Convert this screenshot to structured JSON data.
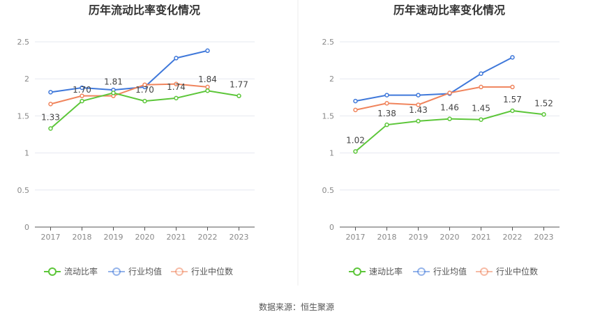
{
  "source": "数据来源：恒生聚源",
  "colors": {
    "main": "#5cc639",
    "avg": "#3f78da",
    "median": "#f0845c",
    "grid": "#e6e8f0",
    "axis": "#555555"
  },
  "chart_data": [
    {
      "type": "line",
      "title": "历年流动比率变化情况",
      "categories": [
        "2017",
        "2018",
        "2019",
        "2020",
        "2021",
        "2022",
        "2023"
      ],
      "ylim": [
        0,
        2.5
      ],
      "yticks": [
        "0",
        "0.5",
        "1",
        "1.5",
        "2",
        "2.5"
      ],
      "grid": true,
      "legend_position": "bottom",
      "series": [
        {
          "name": "流动比率",
          "values": [
            1.33,
            1.7,
            1.81,
            1.7,
            1.74,
            1.84,
            1.77
          ],
          "labels": [
            "1.33",
            "1.70",
            "1.81",
            "1.70",
            "1.74",
            "1.84",
            "1.77"
          ]
        },
        {
          "name": "行业均值",
          "values": [
            1.82,
            1.88,
            1.85,
            1.89,
            2.28,
            2.38,
            null
          ]
        },
        {
          "name": "行业中位数",
          "values": [
            1.66,
            1.77,
            1.77,
            1.92,
            1.93,
            1.89,
            null
          ]
        }
      ]
    },
    {
      "type": "line",
      "title": "历年速动比率变化情况",
      "categories": [
        "2017",
        "2018",
        "2019",
        "2020",
        "2021",
        "2022",
        "2023"
      ],
      "ylim": [
        0,
        2.5
      ],
      "yticks": [
        "0",
        "0.5",
        "1",
        "1.5",
        "2",
        "2.5"
      ],
      "grid": true,
      "legend_position": "bottom",
      "series": [
        {
          "name": "速动比率",
          "values": [
            1.02,
            1.38,
            1.43,
            1.46,
            1.45,
            1.57,
            1.52
          ],
          "labels": [
            "1.02",
            "1.38",
            "1.43",
            "1.46",
            "1.45",
            "1.57",
            "1.52"
          ]
        },
        {
          "name": "行业均值",
          "values": [
            1.7,
            1.78,
            1.78,
            1.8,
            2.07,
            2.29,
            null
          ]
        },
        {
          "name": "行业中位数",
          "values": [
            1.58,
            1.67,
            1.65,
            1.81,
            1.89,
            1.89,
            null
          ]
        }
      ]
    }
  ]
}
